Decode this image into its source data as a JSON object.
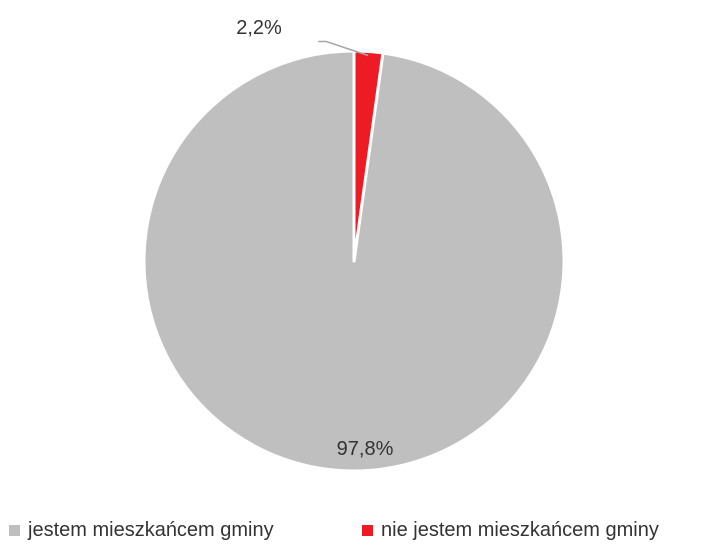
{
  "chart_data": {
    "type": "pie",
    "slices": [
      {
        "name": "jestem mieszkańcem gminy",
        "value": 97.8,
        "label": "97,8%",
        "color": "#bfbfbf"
      },
      {
        "name": "nie jestem mieszkańcem gminy",
        "value": 2.2,
        "label": "2,2%",
        "color": "#ed1c24"
      }
    ],
    "start_angle_deg": 0,
    "direction": "counterclockwise",
    "legend_position": "bottom",
    "legend": [
      {
        "label": "jestem mieszkańcem gminy",
        "color": "#bfbfbf"
      },
      {
        "label": "nie jestem mieszkańcem gminy",
        "color": "#ed1c24"
      }
    ]
  }
}
